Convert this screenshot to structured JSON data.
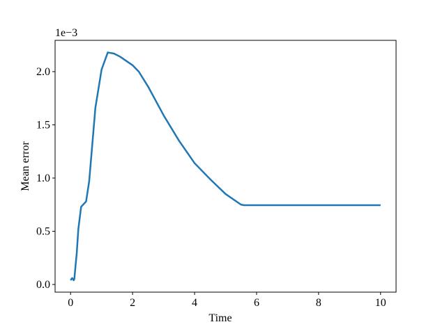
{
  "chart_data": {
    "type": "line",
    "xlabel": "Time",
    "ylabel": "Mean error",
    "y_offset_text": "1e−3",
    "x": [
      0,
      0.05,
      0.1,
      0.12,
      0.2,
      0.25,
      0.34,
      0.5,
      0.6,
      0.8,
      1.0,
      1.2,
      1.4,
      1.6,
      2.0,
      2.2,
      2.5,
      3.0,
      3.5,
      4.0,
      4.5,
      5.0,
      5.5,
      5.6,
      6,
      7,
      8,
      9,
      10
    ],
    "series": [
      {
        "name": "Mean error",
        "color": "#1f77b4",
        "values": [
          0.04,
          0.06,
          0.04,
          0.05,
          0.3,
          0.52,
          0.73,
          0.78,
          0.97,
          1.66,
          2.02,
          2.18,
          2.17,
          2.14,
          2.06,
          2.0,
          1.86,
          1.59,
          1.35,
          1.14,
          0.99,
          0.85,
          0.75,
          0.745,
          0.745,
          0.745,
          0.745,
          0.745,
          0.745
        ]
      }
    ],
    "xlim": [
      -0.5,
      10.5
    ],
    "xticks": [
      0,
      2,
      4,
      6,
      8,
      10
    ],
    "ylim": [
      -0.072,
      2.294
    ],
    "yticks": [
      {
        "value": 0,
        "label": "0.0"
      },
      0.5,
      {
        "value": 1,
        "label": "1.0"
      },
      1.5,
      {
        "value": 2,
        "label": "2.0"
      }
    ],
    "grid": false
  }
}
